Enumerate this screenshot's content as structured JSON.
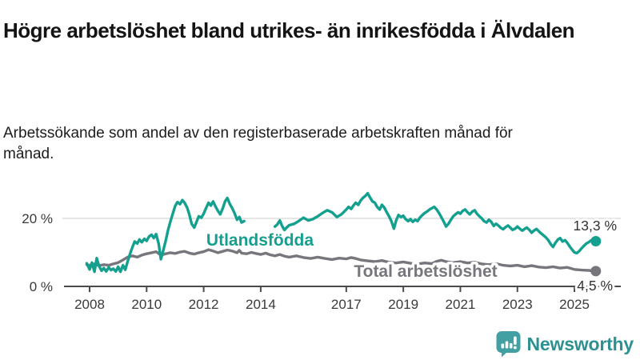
{
  "header": {
    "title": "Högre arbetslöshet bland utrikes- än inrikesfödda i Älvdalen",
    "subtitle": "Arbetssökande som andel av den registerbaserade arbetskraften månad för månad."
  },
  "chart_data": {
    "type": "line",
    "title": "Högre arbetslöshet bland utrikes- än inrikesfödda i Älvdalen",
    "xlabel": "",
    "ylabel": "",
    "x_unit": "year (monthly data)",
    "y_unit": "%",
    "xlim": [
      2007.9,
      2025.95
    ],
    "ylim": [
      0,
      29
    ],
    "grid": "single horizontal gridline at 20 %",
    "legend_position": "inline labels on lines",
    "x_ticks": [
      2008,
      2010,
      2012,
      2014,
      2017,
      2019,
      2021,
      2023,
      2025
    ],
    "x_tick_labels": [
      "2008",
      "2010",
      "2012",
      "2014",
      "2017",
      "2019",
      "2021",
      "2023",
      "2025"
    ],
    "y_ticks": [
      {
        "value": 0,
        "label": "0 %"
      },
      {
        "value": 20,
        "label": "20 %"
      }
    ],
    "colors": {
      "utlandsfodda": "#13a08f",
      "total": "#76767c",
      "axis": "#4a4a4a",
      "gridline": "#d5d5d5",
      "tick_text": "#3a3a3a",
      "value_label": "#333333"
    },
    "series": [
      {
        "name": "Utlandsfödda",
        "color": "#13a08f",
        "end_value": 13.3,
        "end_label": "13,3 %",
        "note": "gap in data mid-2013 to mid-2014",
        "points": [
          [
            2007.9,
            6.8
          ],
          [
            2008,
            5
          ],
          [
            2008.08,
            7
          ],
          [
            2008.17,
            4.3
          ],
          [
            2008.25,
            8.3
          ],
          [
            2008.33,
            6
          ],
          [
            2008.42,
            4.6
          ],
          [
            2008.5,
            5.4
          ],
          [
            2008.58,
            4.4
          ],
          [
            2008.67,
            5.6
          ],
          [
            2008.75,
            4.8
          ],
          [
            2008.83,
            5.2
          ],
          [
            2008.92,
            4.4
          ],
          [
            2009,
            5.8
          ],
          [
            2009.08,
            4.3
          ],
          [
            2009.17,
            6.2
          ],
          [
            2009.25,
            4.9
          ],
          [
            2009.33,
            7.2
          ],
          [
            2009.42,
            9.6
          ],
          [
            2009.5,
            11.5
          ],
          [
            2009.58,
            13.2
          ],
          [
            2009.67,
            12.6
          ],
          [
            2009.75,
            13.8
          ],
          [
            2009.83,
            13
          ],
          [
            2009.92,
            14
          ],
          [
            2010,
            13.4
          ],
          [
            2010.08,
            14.6
          ],
          [
            2010.17,
            15.2
          ],
          [
            2010.25,
            14.2
          ],
          [
            2010.33,
            15.4
          ],
          [
            2010.42,
            12.6
          ],
          [
            2010.5,
            8
          ],
          [
            2010.58,
            10.5
          ],
          [
            2010.67,
            13.5
          ],
          [
            2010.75,
            16.5
          ],
          [
            2010.83,
            19
          ],
          [
            2010.92,
            21.5
          ],
          [
            2011,
            23.6
          ],
          [
            2011.08,
            24.8
          ],
          [
            2011.17,
            24.2
          ],
          [
            2011.25,
            25.4
          ],
          [
            2011.33,
            24.6
          ],
          [
            2011.42,
            23.2
          ],
          [
            2011.5,
            21
          ],
          [
            2011.58,
            18.4
          ],
          [
            2011.67,
            17.3
          ],
          [
            2011.75,
            19
          ],
          [
            2011.83,
            20.6
          ],
          [
            2011.92,
            20.2
          ],
          [
            2012,
            21.4
          ],
          [
            2012.08,
            23
          ],
          [
            2012.17,
            24.6
          ],
          [
            2012.25,
            23.8
          ],
          [
            2012.33,
            25
          ],
          [
            2012.42,
            23.4
          ],
          [
            2012.5,
            22.2
          ],
          [
            2012.58,
            21.2
          ],
          [
            2012.67,
            23
          ],
          [
            2012.75,
            25
          ],
          [
            2012.83,
            26
          ],
          [
            2012.92,
            24.2
          ],
          [
            2013,
            23
          ],
          [
            2013.08,
            21.6
          ],
          [
            2013.17,
            19.6
          ],
          [
            2013.25,
            20.4
          ],
          [
            2013.33,
            18.8
          ],
          [
            2013.42,
            19.2
          ],
          [
            2013.5,
            null
          ],
          [
            2013.67,
            null
          ],
          [
            2013.83,
            null
          ],
          [
            2014,
            null
          ],
          [
            2014.17,
            null
          ],
          [
            2014.33,
            null
          ],
          [
            2014.5,
            17.6
          ],
          [
            2014.58,
            18.2
          ],
          [
            2014.67,
            19.4
          ],
          [
            2014.75,
            17.8
          ],
          [
            2014.83,
            16.6
          ],
          [
            2014.92,
            17.4
          ],
          [
            2015,
            18
          ],
          [
            2015.17,
            18.4
          ],
          [
            2015.33,
            19.2
          ],
          [
            2015.5,
            20.2
          ],
          [
            2015.67,
            19.4
          ],
          [
            2015.83,
            19.8
          ],
          [
            2016,
            20.6
          ],
          [
            2016.17,
            21.6
          ],
          [
            2016.33,
            22.4
          ],
          [
            2016.5,
            21.8
          ],
          [
            2016.67,
            20.4
          ],
          [
            2016.83,
            21.2
          ],
          [
            2017,
            22.6
          ],
          [
            2017.08,
            23.4
          ],
          [
            2017.17,
            22.8
          ],
          [
            2017.25,
            23.8
          ],
          [
            2017.33,
            24.6
          ],
          [
            2017.42,
            24
          ],
          [
            2017.5,
            25.2
          ],
          [
            2017.58,
            26
          ],
          [
            2017.67,
            26.6
          ],
          [
            2017.75,
            27.4
          ],
          [
            2017.83,
            26.2
          ],
          [
            2017.92,
            25
          ],
          [
            2018,
            24.6
          ],
          [
            2018.08,
            23.4
          ],
          [
            2018.17,
            22.6
          ],
          [
            2018.25,
            24
          ],
          [
            2018.33,
            23.2
          ],
          [
            2018.42,
            21.8
          ],
          [
            2018.5,
            20.6
          ],
          [
            2018.58,
            19.2
          ],
          [
            2018.67,
            17
          ],
          [
            2018.75,
            19.4
          ],
          [
            2018.83,
            21
          ],
          [
            2018.92,
            20.4
          ],
          [
            2019,
            20.8
          ],
          [
            2019.08,
            19.8
          ],
          [
            2019.17,
            19.2
          ],
          [
            2019.25,
            19.8
          ],
          [
            2019.33,
            19
          ],
          [
            2019.42,
            19.6
          ],
          [
            2019.5,
            19.2
          ],
          [
            2019.58,
            20.2
          ],
          [
            2019.67,
            21
          ],
          [
            2019.75,
            21.6
          ],
          [
            2019.83,
            22
          ],
          [
            2019.92,
            22.6
          ],
          [
            2020,
            23
          ],
          [
            2020.08,
            23.4
          ],
          [
            2020.17,
            22.6
          ],
          [
            2020.25,
            21.6
          ],
          [
            2020.33,
            20.4
          ],
          [
            2020.42,
            19
          ],
          [
            2020.5,
            17.6
          ],
          [
            2020.58,
            18.4
          ],
          [
            2020.67,
            19.6
          ],
          [
            2020.75,
            20.6
          ],
          [
            2020.83,
            21.2
          ],
          [
            2020.92,
            21.8
          ],
          [
            2021,
            21.4
          ],
          [
            2021.08,
            22.2
          ],
          [
            2021.17,
            22.6
          ],
          [
            2021.25,
            21.8
          ],
          [
            2021.33,
            21.2
          ],
          [
            2021.42,
            22
          ],
          [
            2021.5,
            22.4
          ],
          [
            2021.58,
            21.4
          ],
          [
            2021.67,
            20.6
          ],
          [
            2021.75,
            20
          ],
          [
            2021.83,
            19.2
          ],
          [
            2021.92,
            18.8
          ],
          [
            2022,
            19.6
          ],
          [
            2022.08,
            19
          ],
          [
            2022.17,
            17.8
          ],
          [
            2022.25,
            18.4
          ],
          [
            2022.33,
            17.9
          ],
          [
            2022.42,
            17.2
          ],
          [
            2022.5,
            16.8
          ],
          [
            2022.58,
            17.4
          ],
          [
            2022.67,
            17.9
          ],
          [
            2022.75,
            17.3
          ],
          [
            2022.83,
            16.6
          ],
          [
            2022.92,
            17
          ],
          [
            2023,
            17.6
          ],
          [
            2023.08,
            17
          ],
          [
            2023.17,
            16.4
          ],
          [
            2023.25,
            16.9
          ],
          [
            2023.33,
            17.3
          ],
          [
            2023.42,
            16.6
          ],
          [
            2023.5,
            15.8
          ],
          [
            2023.58,
            16.4
          ],
          [
            2023.67,
            16.9
          ],
          [
            2023.75,
            16.2
          ],
          [
            2023.83,
            15.6
          ],
          [
            2023.92,
            15
          ],
          [
            2024,
            14.4
          ],
          [
            2024.08,
            13.6
          ],
          [
            2024.17,
            12.4
          ],
          [
            2024.25,
            11.6
          ],
          [
            2024.33,
            12.8
          ],
          [
            2024.42,
            13.8
          ],
          [
            2024.5,
            14.2
          ],
          [
            2024.58,
            13.2
          ],
          [
            2024.67,
            13.6
          ],
          [
            2024.75,
            12.8
          ],
          [
            2024.83,
            11.8
          ],
          [
            2024.92,
            10.8
          ],
          [
            2025,
            10
          ],
          [
            2025.08,
            9.8
          ],
          [
            2025.17,
            10.4
          ],
          [
            2025.25,
            11.2
          ],
          [
            2025.33,
            11.9
          ],
          [
            2025.42,
            12.6
          ],
          [
            2025.5,
            13
          ],
          [
            2025.58,
            13.5
          ],
          [
            2025.67,
            13.1
          ],
          [
            2025.75,
            13.3
          ]
        ]
      },
      {
        "name": "Total arbetslöshet",
        "color": "#76767c",
        "end_value": 4.5,
        "end_label": "4,5 %",
        "points": [
          [
            2007.9,
            6.4
          ],
          [
            2008,
            6.2
          ],
          [
            2008.17,
            6.6
          ],
          [
            2008.33,
            6.1
          ],
          [
            2008.5,
            6.4
          ],
          [
            2008.67,
            6.2
          ],
          [
            2008.83,
            6.6
          ],
          [
            2009,
            7
          ],
          [
            2009.17,
            7.8
          ],
          [
            2009.33,
            8.6
          ],
          [
            2009.5,
            9
          ],
          [
            2009.67,
            8.6
          ],
          [
            2009.83,
            9.2
          ],
          [
            2010,
            9.6
          ],
          [
            2010.17,
            9.9
          ],
          [
            2010.33,
            10.2
          ],
          [
            2010.5,
            9.2
          ],
          [
            2010.67,
            9.6
          ],
          [
            2010.83,
            9.9
          ],
          [
            2011,
            9.7
          ],
          [
            2011.17,
            10.1
          ],
          [
            2011.33,
            10.3
          ],
          [
            2011.5,
            9.8
          ],
          [
            2011.67,
            9.5
          ],
          [
            2011.83,
            9.9
          ],
          [
            2012,
            10.2
          ],
          [
            2012.17,
            10.8
          ],
          [
            2012.33,
            10.4
          ],
          [
            2012.5,
            9.9
          ],
          [
            2012.67,
            10.3
          ],
          [
            2012.83,
            10.7
          ],
          [
            2013,
            10.4
          ],
          [
            2013.17,
            9.9
          ],
          [
            2013.25,
            10.6
          ],
          [
            2013.33,
            9.8
          ],
          [
            2013.5,
            9.6
          ],
          [
            2013.67,
            10
          ],
          [
            2013.83,
            9.7
          ],
          [
            2014,
            9.4
          ],
          [
            2014.17,
            9.8
          ],
          [
            2014.33,
            9.3
          ],
          [
            2014.5,
            9
          ],
          [
            2014.67,
            9.4
          ],
          [
            2014.83,
            8.9
          ],
          [
            2015,
            8.6
          ],
          [
            2015.25,
            9
          ],
          [
            2015.5,
            8.5
          ],
          [
            2015.75,
            8.2
          ],
          [
            2016,
            8.6
          ],
          [
            2016.25,
            8.2
          ],
          [
            2016.5,
            7.9
          ],
          [
            2016.75,
            8.3
          ],
          [
            2017,
            8.1
          ],
          [
            2017.17,
            8.5
          ],
          [
            2017.33,
            8.2
          ],
          [
            2017.5,
            7.8
          ],
          [
            2017.75,
            7.5
          ],
          [
            2018,
            7.3
          ],
          [
            2018.25,
            7.6
          ],
          [
            2018.5,
            7.1
          ],
          [
            2018.75,
            6.9
          ],
          [
            2019,
            7.2
          ],
          [
            2019.25,
            6.8
          ],
          [
            2019.5,
            6.6
          ],
          [
            2019.75,
            6.9
          ],
          [
            2020,
            6.7
          ],
          [
            2020.17,
            7.4
          ],
          [
            2020.33,
            7.7
          ],
          [
            2020.5,
            7.3
          ],
          [
            2020.75,
            7
          ],
          [
            2021,
            7.3
          ],
          [
            2021.25,
            6.9
          ],
          [
            2021.5,
            7.1
          ],
          [
            2021.75,
            6.6
          ],
          [
            2022,
            6.4
          ],
          [
            2022.25,
            6.7
          ],
          [
            2022.5,
            6.2
          ],
          [
            2022.75,
            6
          ],
          [
            2023,
            6.2
          ],
          [
            2023.25,
            5.8
          ],
          [
            2023.5,
            6.1
          ],
          [
            2023.75,
            5.7
          ],
          [
            2024,
            5.5
          ],
          [
            2024.25,
            5.8
          ],
          [
            2024.5,
            5.4
          ],
          [
            2024.75,
            5.6
          ],
          [
            2025,
            5
          ],
          [
            2025.25,
            4.8
          ],
          [
            2025.5,
            4.7
          ],
          [
            2025.75,
            4.5
          ]
        ]
      }
    ]
  },
  "footer": {
    "brand": "Newsworthy",
    "brand_color": "#2d9193",
    "logo_icon": "bar-chart-speech-bubble-icon",
    "logo_color": "#43a0a2"
  }
}
